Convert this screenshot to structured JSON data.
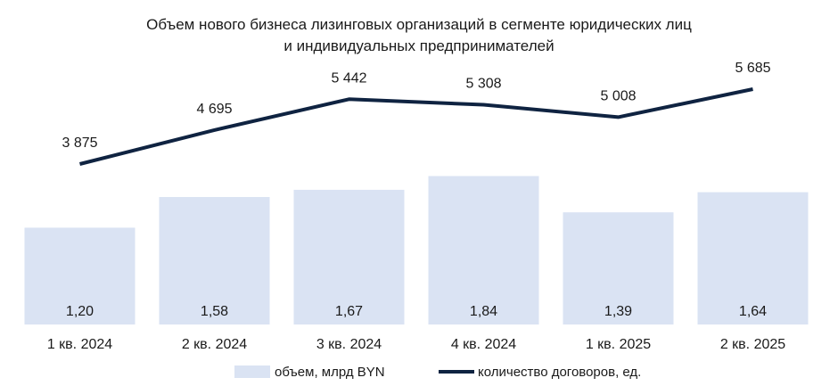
{
  "chart_data": {
    "type": "bar",
    "title": [
      "Объем нового бизнеса лизинговых организаций в сегменте юридических лиц",
      "и индивидуальных  предпринимателей"
    ],
    "categories": [
      "1 кв. 2024",
      "2 кв. 2024",
      "3 кв. 2024",
      "4 кв. 2024",
      "1 кв. 2025",
      "2 кв. 2025"
    ],
    "series": [
      {
        "name": "объем, млрд BYN",
        "type": "bar",
        "values": [
          1.2,
          1.58,
          1.67,
          1.84,
          1.39,
          1.64
        ],
        "labels": [
          "1,20",
          "1,58",
          "1,67",
          "1,84",
          "1,39",
          "1,64"
        ],
        "color": "#dae3f3"
      },
      {
        "name": "количество договоров, ед.",
        "type": "line",
        "values": [
          3875,
          4695,
          5442,
          5308,
          5008,
          5685
        ],
        "labels": [
          "3 875",
          "4 695",
          "5 442",
          "5 308",
          "5 008",
          "5 685"
        ],
        "color": "#0f2341"
      }
    ],
    "bar_axis": {
      "ylim": [
        0,
        2.5
      ]
    },
    "line_axis": {
      "ylim": [
        0,
        7000
      ]
    },
    "legend": "bottom"
  }
}
